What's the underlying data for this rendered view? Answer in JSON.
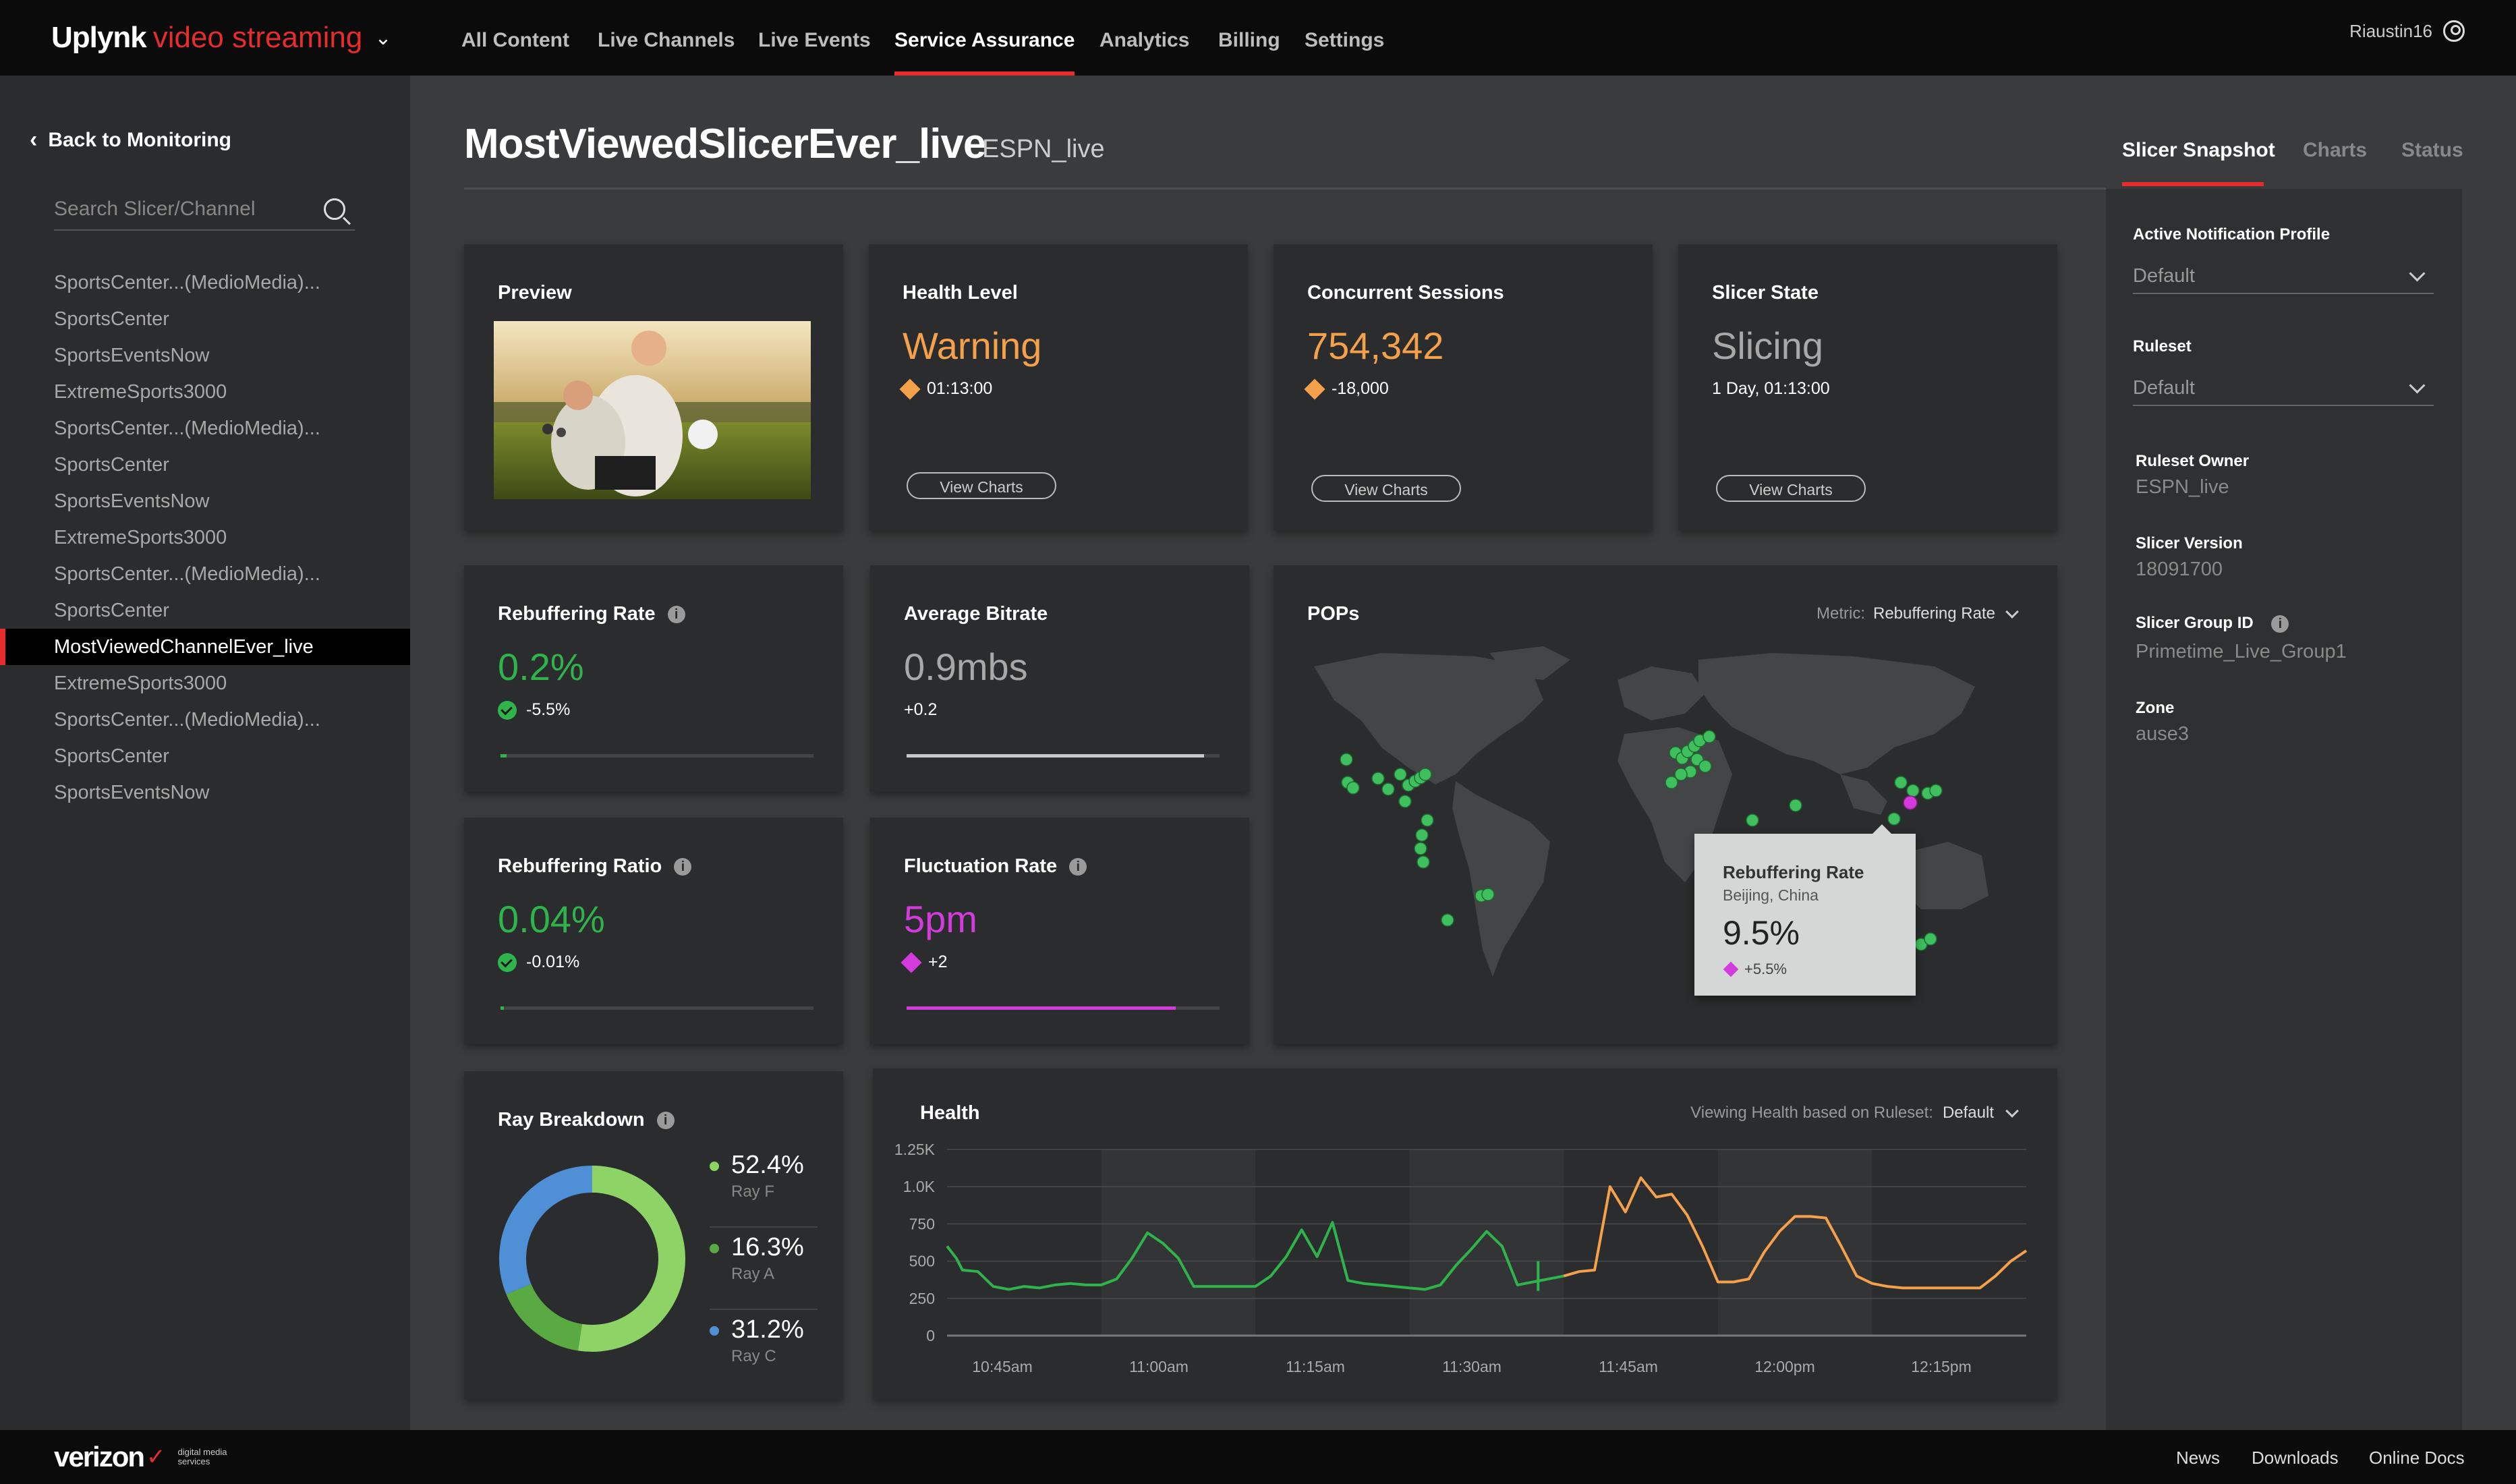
{
  "app": {
    "brand_main": "Uplynk",
    "brand_sub": "video streaming",
    "user": "Riaustin16"
  },
  "nav": [
    {
      "label": "All Content"
    },
    {
      "label": "Live Channels"
    },
    {
      "label": "Live Events"
    },
    {
      "label": "Service Assurance",
      "active": true
    },
    {
      "label": "Analytics"
    },
    {
      "label": "Billing"
    },
    {
      "label": "Settings"
    }
  ],
  "sidebar": {
    "back_label": "Back to Monitoring",
    "search_placeholder": "Search Slicer/Channel",
    "items": [
      "SportsCenter...(MedioMedia)...",
      "SportsCenter",
      "SportsEventsNow",
      "ExtremeSports3000",
      "SportsCenter...(MedioMedia)...",
      "SportsCenter",
      "SportsEventsNow",
      "ExtremeSports3000",
      "SportsCenter...(MedioMedia)...",
      "SportsCenter",
      "MostViewedChannelEver_live",
      "ExtremeSports3000",
      "SportsCenter...(MedioMedia)...",
      "SportsCenter",
      "SportsEventsNow"
    ],
    "active_index": 10
  },
  "header": {
    "title": "MostViewedSlicerEver_live",
    "subtitle": "ESPN_live"
  },
  "right_tabs": [
    "Slicer Snapshot",
    "Charts",
    "Status"
  ],
  "panel": {
    "notif_label": "Active Notification Profile",
    "notif_value": "Default",
    "ruleset_label": "Ruleset",
    "ruleset_value": "Default",
    "owner_label": "Ruleset Owner",
    "owner_value": "ESPN_live",
    "version_label": "Slicer Version",
    "version_value": "18091700",
    "group_label": "Slicer Group ID",
    "group_value": "Primetime_Live_Group1",
    "zone_label": "Zone",
    "zone_value": "ause3"
  },
  "cards": {
    "preview": {
      "title": "Preview"
    },
    "health": {
      "title": "Health Level",
      "value": "Warning",
      "sub": "01:13:00",
      "button": "View Charts",
      "color": "#f5a04a"
    },
    "sessions": {
      "title": "Concurrent Sessions",
      "value": "754,342",
      "sub": "-18,000",
      "button": "View Charts",
      "color": "#f5a04a"
    },
    "slicer": {
      "title": "Slicer State",
      "value": "Slicing",
      "sub": "1 Day, 01:13:00",
      "button": "View Charts"
    },
    "rebuf_rate": {
      "title": "Rebuffering Rate",
      "value": "0.2%",
      "sub": "-5.5%",
      "progress": 0.02
    },
    "avg_bitrate": {
      "title": "Average Bitrate",
      "value": "0.9mbs",
      "sub": "+0.2",
      "progress": 0.95
    },
    "rebuf_ratio": {
      "title": "Rebuffering Ratio",
      "value": "0.04%",
      "sub": "-0.01%",
      "progress": 0.01
    },
    "fluct": {
      "title": "Fluctuation Rate",
      "value": "5pm",
      "sub": "+2",
      "progress": 0.86,
      "color": "#d43bdc"
    }
  },
  "pops": {
    "title": "POPs",
    "metric_label": "Metric:",
    "metric_value": "Rebuffering Rate",
    "tooltip": {
      "title": "Rebuffering Rate",
      "location": "Beijing, China",
      "value": "9.5%",
      "delta": "+5.5%"
    }
  },
  "ray": {
    "title": "Ray Breakdown",
    "legend": [
      {
        "value": "52.4%",
        "label": "Ray F",
        "color": "#8ed366"
      },
      {
        "value": "16.3%",
        "label": "Ray A",
        "color": "#5aaa43"
      },
      {
        "value": "31.2%",
        "label": "Ray C",
        "color": "#4f8fd6"
      }
    ]
  },
  "health_chart": {
    "title": "Health",
    "ruleset_label": "Viewing Health based on Ruleset:",
    "ruleset_value": "Default"
  },
  "chart_data": {
    "type": "line",
    "title": "Health",
    "ylim": [
      0,
      1250
    ],
    "yticks": [
      "0",
      "250",
      "500",
      "750",
      "1.0K",
      "1.25K"
    ],
    "xticks": [
      "10:45am",
      "11:00am",
      "11:15am",
      "11:30am",
      "11:45am",
      "12:00pm",
      "12:15pm"
    ],
    "series": [
      {
        "color": "#2fb44c",
        "points": [
          [
            0,
            600
          ],
          [
            0.6,
            520
          ],
          [
            1,
            440
          ],
          [
            2,
            430
          ],
          [
            3,
            330
          ],
          [
            4,
            310
          ],
          [
            5,
            330
          ],
          [
            6,
            320
          ],
          [
            7,
            340
          ],
          [
            8,
            350
          ],
          [
            9,
            340
          ],
          [
            10,
            340
          ],
          [
            11,
            380
          ],
          [
            12,
            520
          ],
          [
            13,
            690
          ],
          [
            14,
            620
          ],
          [
            15,
            520
          ],
          [
            16,
            330
          ],
          [
            17,
            330
          ],
          [
            18,
            330
          ],
          [
            19,
            330
          ],
          [
            20,
            330
          ],
          [
            21,
            400
          ],
          [
            22,
            530
          ],
          [
            23,
            710
          ],
          [
            24,
            530
          ],
          [
            25,
            760
          ],
          [
            26,
            370
          ],
          [
            27,
            350
          ],
          [
            28,
            340
          ],
          [
            29,
            330
          ],
          [
            30,
            320
          ],
          [
            31,
            310
          ],
          [
            32,
            340
          ],
          [
            33,
            470
          ],
          [
            34,
            580
          ],
          [
            35,
            700
          ],
          [
            36,
            600
          ],
          [
            37,
            340
          ],
          [
            38,
            360
          ],
          [
            39,
            380
          ],
          [
            40,
            400
          ]
        ]
      },
      {
        "color": "#f5a04a",
        "points": [
          [
            40,
            400
          ],
          [
            41,
            430
          ],
          [
            42,
            440
          ],
          [
            43,
            1000
          ],
          [
            44,
            830
          ],
          [
            45,
            1060
          ],
          [
            46,
            930
          ],
          [
            47,
            950
          ],
          [
            48,
            810
          ],
          [
            49,
            600
          ],
          [
            50,
            360
          ],
          [
            51,
            360
          ],
          [
            52,
            380
          ],
          [
            53,
            560
          ],
          [
            54,
            700
          ],
          [
            55,
            800
          ],
          [
            56,
            800
          ],
          [
            57,
            790
          ],
          [
            58,
            600
          ],
          [
            59,
            400
          ],
          [
            60,
            350
          ],
          [
            61,
            330
          ],
          [
            62,
            320
          ],
          [
            63,
            320
          ],
          [
            64,
            320
          ],
          [
            65,
            320
          ],
          [
            66,
            320
          ],
          [
            67,
            320
          ],
          [
            68,
            400
          ],
          [
            69,
            500
          ],
          [
            70,
            570
          ]
        ]
      }
    ]
  }
}
